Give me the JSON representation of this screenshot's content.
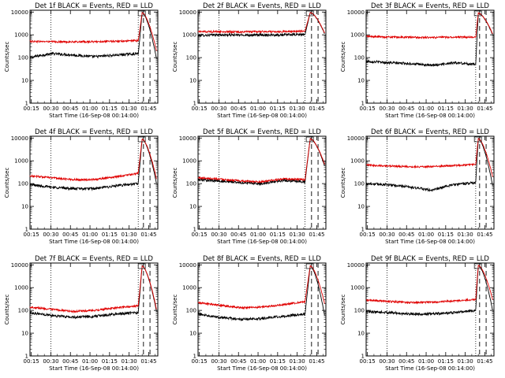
{
  "chart_data": [
    {
      "type": "line",
      "title": "Det 1f BLACK = Events, RED = LLD",
      "xlabel": "Start Time (16-Sep-08 00:14:00)",
      "ylabel": "Counts/sec",
      "x_ticks": [
        "00:15",
        "00:30",
        "00:45",
        "01:00",
        "01:15",
        "01:30",
        "01:45"
      ],
      "y_ticks": [
        "1",
        "10",
        "100",
        "1000",
        "10000"
      ],
      "yscale": "log",
      "ylim": [
        1,
        12000
      ],
      "x_range_min": [
        0,
        98
      ],
      "series": [
        {
          "color": "#000000",
          "base": 120,
          "seg_vals": [
            100,
            150,
            130,
            110,
            130,
            150
          ]
        },
        {
          "color": "#e00000",
          "base": 520,
          "seg_vals": [
            520,
            500,
            490,
            500,
            520,
            560
          ]
        }
      ],
      "flare": {
        "rise_min": 83,
        "peak_min": 86,
        "peak": 9500,
        "end_min": 97,
        "end_black": 90,
        "end_red": 200
      },
      "vlines_dotted": [
        16,
        83
      ],
      "vlines_dashed": [
        87,
        92
      ]
    },
    {
      "type": "line",
      "title": "Det 2f BLACK = Events, RED = LLD",
      "xlabel": "Start Time (16-Sep-08 00:14:00)",
      "ylabel": "Counts/sec",
      "x_ticks": [
        "00:15",
        "00:30",
        "00:45",
        "01:00",
        "01:15",
        "01:30",
        "01:45"
      ],
      "y_ticks": [
        "1",
        "10",
        "100",
        "1000",
        "10000"
      ],
      "yscale": "log",
      "ylim": [
        1,
        12000
      ],
      "x_range_min": [
        0,
        98
      ],
      "series": [
        {
          "color": "#000000",
          "base": 1000,
          "seg_vals": [
            950,
            1000,
            980,
            990,
            1000,
            1050
          ]
        },
        {
          "color": "#e00000",
          "base": 1400,
          "seg_vals": [
            1400,
            1380,
            1350,
            1380,
            1400,
            1450
          ]
        }
      ],
      "flare": {
        "rise_min": 82,
        "peak_min": 86,
        "peak": 9500,
        "end_min": 97,
        "end_black": 1100,
        "end_red": 1200
      },
      "vlines_dotted": [
        16,
        82
      ],
      "vlines_dashed": [
        87,
        92
      ]
    },
    {
      "type": "line",
      "title": "Det 3f BLACK = Events, RED = LLD",
      "xlabel": "Start Time (16-Sep-08 00:14:00)",
      "ylabel": "Counts/sec",
      "x_ticks": [
        "00:15",
        "00:30",
        "00:45",
        "01:00",
        "01:15",
        "01:30",
        "01:45"
      ],
      "y_ticks": [
        "1",
        "10",
        "100",
        "1000",
        "10000"
      ],
      "yscale": "log",
      "ylim": [
        1,
        12000
      ],
      "x_range_min": [
        0,
        98
      ],
      "series": [
        {
          "color": "#000000",
          "base": 60,
          "seg_vals": [
            70,
            60,
            55,
            45,
            60,
            50
          ]
        },
        {
          "color": "#e00000",
          "base": 800,
          "seg_vals": [
            850,
            800,
            780,
            760,
            800,
            780
          ]
        }
      ],
      "flare": {
        "rise_min": 84,
        "peak_min": 86,
        "peak": 9000,
        "end_min": 97,
        "end_black": 1000,
        "end_red": 1100
      },
      "vlines_dotted": [
        16,
        84
      ],
      "vlines_dashed": [
        87,
        92
      ]
    },
    {
      "type": "line",
      "title": "Det 4f BLACK = Events, RED = LLD",
      "xlabel": "Start Time (16-Sep-08 00:14:00)",
      "ylabel": "Counts/sec",
      "x_ticks": [
        "00:15",
        "00:30",
        "00:45",
        "01:00",
        "01:15",
        "01:30",
        "01:45"
      ],
      "y_ticks": [
        "1",
        "10",
        "100",
        "1000",
        "10000"
      ],
      "yscale": "log",
      "ylim": [
        1,
        12000
      ],
      "x_range_min": [
        0,
        98
      ],
      "series": [
        {
          "color": "#000000",
          "base": 80,
          "seg_vals": [
            90,
            70,
            60,
            60,
            80,
            100
          ]
        },
        {
          "color": "#e00000",
          "base": 200,
          "seg_vals": [
            220,
            180,
            150,
            150,
            200,
            280
          ]
        }
      ],
      "flare": {
        "rise_min": 83,
        "peak_min": 86,
        "peak": 9000,
        "end_min": 97,
        "end_black": 100,
        "end_red": 160
      },
      "vlines_dotted": [
        16,
        83
      ],
      "vlines_dashed": [
        87,
        92
      ]
    },
    {
      "type": "line",
      "title": "Det 5f BLACK = Events, RED = LLD",
      "xlabel": "Start Time (16-Sep-08 00:14:00)",
      "ylabel": "Counts/sec",
      "x_ticks": [
        "00:15",
        "00:30",
        "00:45",
        "01:00",
        "01:15",
        "01:30",
        "01:45"
      ],
      "y_ticks": [
        "1",
        "10",
        "100",
        "1000",
        "10000"
      ],
      "yscale": "log",
      "ylim": [
        1,
        12000
      ],
      "x_range_min": [
        0,
        98
      ],
      "series": [
        {
          "color": "#000000",
          "base": 140,
          "seg_vals": [
            150,
            130,
            110,
            100,
            140,
            120
          ]
        },
        {
          "color": "#e00000",
          "base": 170,
          "seg_vals": [
            180,
            160,
            130,
            120,
            160,
            150
          ]
        }
      ],
      "flare": {
        "rise_min": 82,
        "peak_min": 86,
        "peak": 9500,
        "end_min": 97,
        "end_black": 600,
        "end_red": 700
      },
      "vlines_dotted": [
        16,
        82
      ],
      "vlines_dashed": [
        87,
        92
      ]
    },
    {
      "type": "line",
      "title": "Det 6f BLACK = Events, RED = LLD",
      "xlabel": "Start Time (16-Sep-08 00:14:00)",
      "ylabel": "Counts/sec",
      "x_ticks": [
        "00:15",
        "00:30",
        "00:45",
        "01:00",
        "01:15",
        "01:30",
        "01:45"
      ],
      "y_ticks": [
        "1",
        "10",
        "100",
        "1000",
        "10000"
      ],
      "yscale": "log",
      "ylim": [
        1,
        12000
      ],
      "x_range_min": [
        0,
        98
      ],
      "series": [
        {
          "color": "#000000",
          "base": 90,
          "seg_vals": [
            100,
            90,
            70,
            50,
            90,
            110
          ]
        },
        {
          "color": "#e00000",
          "base": 620,
          "seg_vals": [
            650,
            600,
            550,
            560,
            620,
            700
          ]
        }
      ],
      "flare": {
        "rise_min": 84,
        "peak_min": 86,
        "peak": 9500,
        "end_min": 97,
        "end_black": 80,
        "end_red": 200
      },
      "vlines_dotted": [
        16,
        84
      ],
      "vlines_dashed": [
        87,
        92
      ]
    },
    {
      "type": "line",
      "title": "Det 7f BLACK = Events, RED = LLD",
      "xlabel": "Start Time (16-Sep-08 00:14:00)",
      "ylabel": "Counts/sec",
      "x_ticks": [
        "00:15",
        "00:30",
        "00:45",
        "01:00",
        "01:15",
        "01:30",
        "01:45"
      ],
      "y_ticks": [
        "1",
        "10",
        "100",
        "1000",
        "10000"
      ],
      "yscale": "log",
      "ylim": [
        1,
        12000
      ],
      "x_range_min": [
        0,
        98
      ],
      "series": [
        {
          "color": "#000000",
          "base": 70,
          "seg_vals": [
            80,
            60,
            50,
            55,
            70,
            80
          ]
        },
        {
          "color": "#e00000",
          "base": 120,
          "seg_vals": [
            140,
            110,
            90,
            100,
            130,
            160
          ]
        }
      ],
      "flare": {
        "rise_min": 83,
        "peak_min": 86,
        "peak": 9000,
        "end_min": 97,
        "end_black": 90,
        "end_red": 110
      },
      "vlines_dotted": [
        16,
        83
      ],
      "vlines_dashed": [
        87,
        92
      ]
    },
    {
      "type": "line",
      "title": "Det 8f BLACK = Events, RED = LLD",
      "xlabel": "Start Time (16-Sep-08 00:14:00)",
      "ylabel": "Counts/sec",
      "x_ticks": [
        "00:15",
        "00:30",
        "00:45",
        "01:00",
        "01:15",
        "01:30",
        "01:45"
      ],
      "y_ticks": [
        "1",
        "10",
        "100",
        "1000",
        "10000"
      ],
      "yscale": "log",
      "ylim": [
        1,
        12000
      ],
      "x_range_min": [
        0,
        98
      ],
      "series": [
        {
          "color": "#000000",
          "base": 60,
          "seg_vals": [
            70,
            50,
            40,
            45,
            55,
            70
          ]
        },
        {
          "color": "#e00000",
          "base": 200,
          "seg_vals": [
            220,
            170,
            130,
            140,
            180,
            240
          ]
        }
      ],
      "flare": {
        "rise_min": 82,
        "peak_min": 86,
        "peak": 9000,
        "end_min": 97,
        "end_black": 60,
        "end_red": 200
      },
      "vlines_dotted": [
        16,
        82
      ],
      "vlines_dashed": [
        87,
        92
      ]
    },
    {
      "type": "line",
      "title": "Det 9f BLACK = Events, RED = LLD",
      "xlabel": "Start Time (16-Sep-08 00:14:00)",
      "ylabel": "Counts/sec",
      "x_ticks": [
        "00:15",
        "00:30",
        "00:45",
        "01:00",
        "01:15",
        "01:30",
        "01:45"
      ],
      "y_ticks": [
        "1",
        "10",
        "100",
        "1000",
        "10000"
      ],
      "yscale": "log",
      "ylim": [
        1,
        12000
      ],
      "x_range_min": [
        0,
        98
      ],
      "series": [
        {
          "color": "#000000",
          "base": 80,
          "seg_vals": [
            90,
            80,
            70,
            70,
            80,
            100
          ]
        },
        {
          "color": "#e00000",
          "base": 250,
          "seg_vals": [
            280,
            250,
            220,
            230,
            260,
            300
          ]
        }
      ],
      "flare": {
        "rise_min": 84,
        "peak_min": 86,
        "peak": 9500,
        "end_min": 97,
        "end_black": 100,
        "end_red": 300
      },
      "vlines_dotted": [
        16,
        84
      ],
      "vlines_dashed": [
        87,
        92
      ]
    }
  ]
}
